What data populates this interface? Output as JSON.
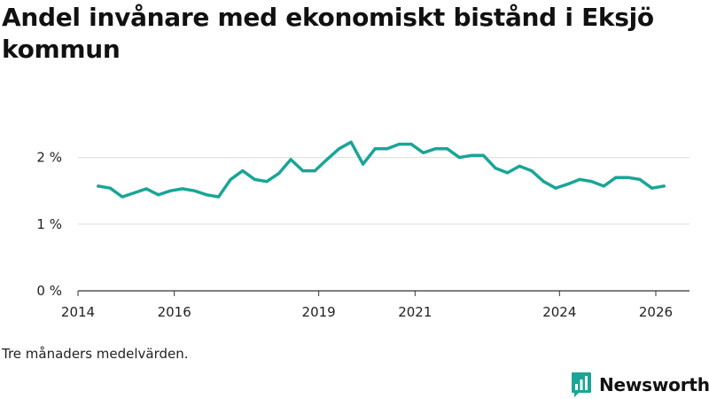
{
  "colors": {
    "line": "#1aa597",
    "grid": "#dddddd",
    "axis": "#333333",
    "brand": "#1aa597"
  },
  "note": "Tre månaders medelvärden.",
  "brand": {
    "name": "Newsworthy",
    "icon": "bar-chart-logo-icon"
  },
  "chart_data": {
    "type": "line",
    "title": "Andel invånare med ekonomiskt bistånd i Eksjö kommun",
    "xlabel": "",
    "ylabel": "",
    "xlim": [
      2014.0,
      2026.7
    ],
    "ylim": [
      0,
      2.5
    ],
    "x_ticks": [
      2014,
      2016,
      2019,
      2021,
      2024,
      2026
    ],
    "y_ticks": [
      {
        "value": 0,
        "label": "0 %"
      },
      {
        "value": 1,
        "label": "1 %"
      },
      {
        "value": 2,
        "label": "2 %"
      }
    ],
    "grid": true,
    "series": [
      {
        "name": "Andel invånare med ekonomiskt bistånd",
        "x": [
          2014.42,
          2014.67,
          2014.92,
          2015.17,
          2015.42,
          2015.67,
          2015.92,
          2016.17,
          2016.42,
          2016.67,
          2016.92,
          2017.17,
          2017.42,
          2017.67,
          2017.92,
          2018.17,
          2018.42,
          2018.67,
          2018.92,
          2019.17,
          2019.42,
          2019.67,
          2019.92,
          2020.17,
          2020.42,
          2020.67,
          2020.92,
          2021.17,
          2021.42,
          2021.67,
          2021.92,
          2022.17,
          2022.42,
          2022.67,
          2022.92,
          2023.17,
          2023.42,
          2023.67,
          2023.92,
          2024.17,
          2024.42,
          2024.67,
          2024.92,
          2025.17,
          2025.42,
          2025.67,
          2025.92,
          2026.17
        ],
        "values": [
          1.57,
          1.54,
          1.41,
          1.47,
          1.53,
          1.44,
          1.5,
          1.53,
          1.5,
          1.44,
          1.41,
          1.67,
          1.8,
          1.67,
          1.64,
          1.76,
          1.97,
          1.8,
          1.8,
          1.97,
          2.13,
          2.23,
          1.9,
          2.13,
          2.13,
          2.2,
          2.2,
          2.07,
          2.13,
          2.13,
          2.0,
          2.03,
          2.03,
          1.84,
          1.77,
          1.87,
          1.8,
          1.64,
          1.54,
          1.6,
          1.67,
          1.64,
          1.57,
          1.7,
          1.7,
          1.67,
          1.54,
          1.57
        ]
      }
    ]
  }
}
